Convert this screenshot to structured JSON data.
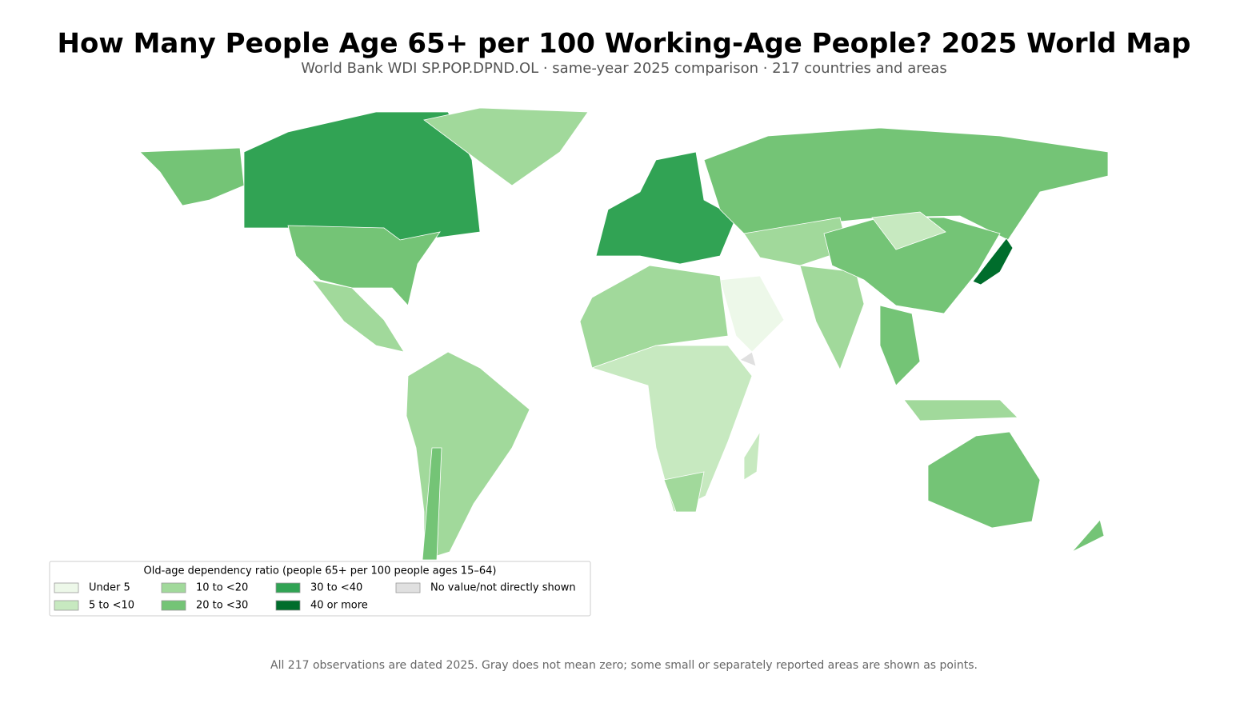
{
  "title": "How Many People Age 65+ per 100 Working-Age People? 2025 World Map",
  "subtitle": "World Bank WDI SP.POP.DPND.OL · same-year 2025 comparison · 217 countries and areas",
  "legend": {
    "title": "Old-age dependency ratio (people 65+ per 100 people ages 15–64)",
    "items": [
      {
        "label": "Under 5",
        "color": "#edf8e9"
      },
      {
        "label": "5 to <10",
        "color": "#c7e9c0"
      },
      {
        "label": "10 to <20",
        "color": "#a1d99b"
      },
      {
        "label": "20 to <30",
        "color": "#74c476"
      },
      {
        "label": "30 to <40",
        "color": "#31a354"
      },
      {
        "label": "40 or more",
        "color": "#006d2c"
      },
      {
        "label": "No value/not directly shown",
        "color": "#e0e0e0"
      }
    ]
  },
  "note": "All 217 observations are dated 2025. Gray does not mean zero; some small or separately reported areas are shown as points."
}
